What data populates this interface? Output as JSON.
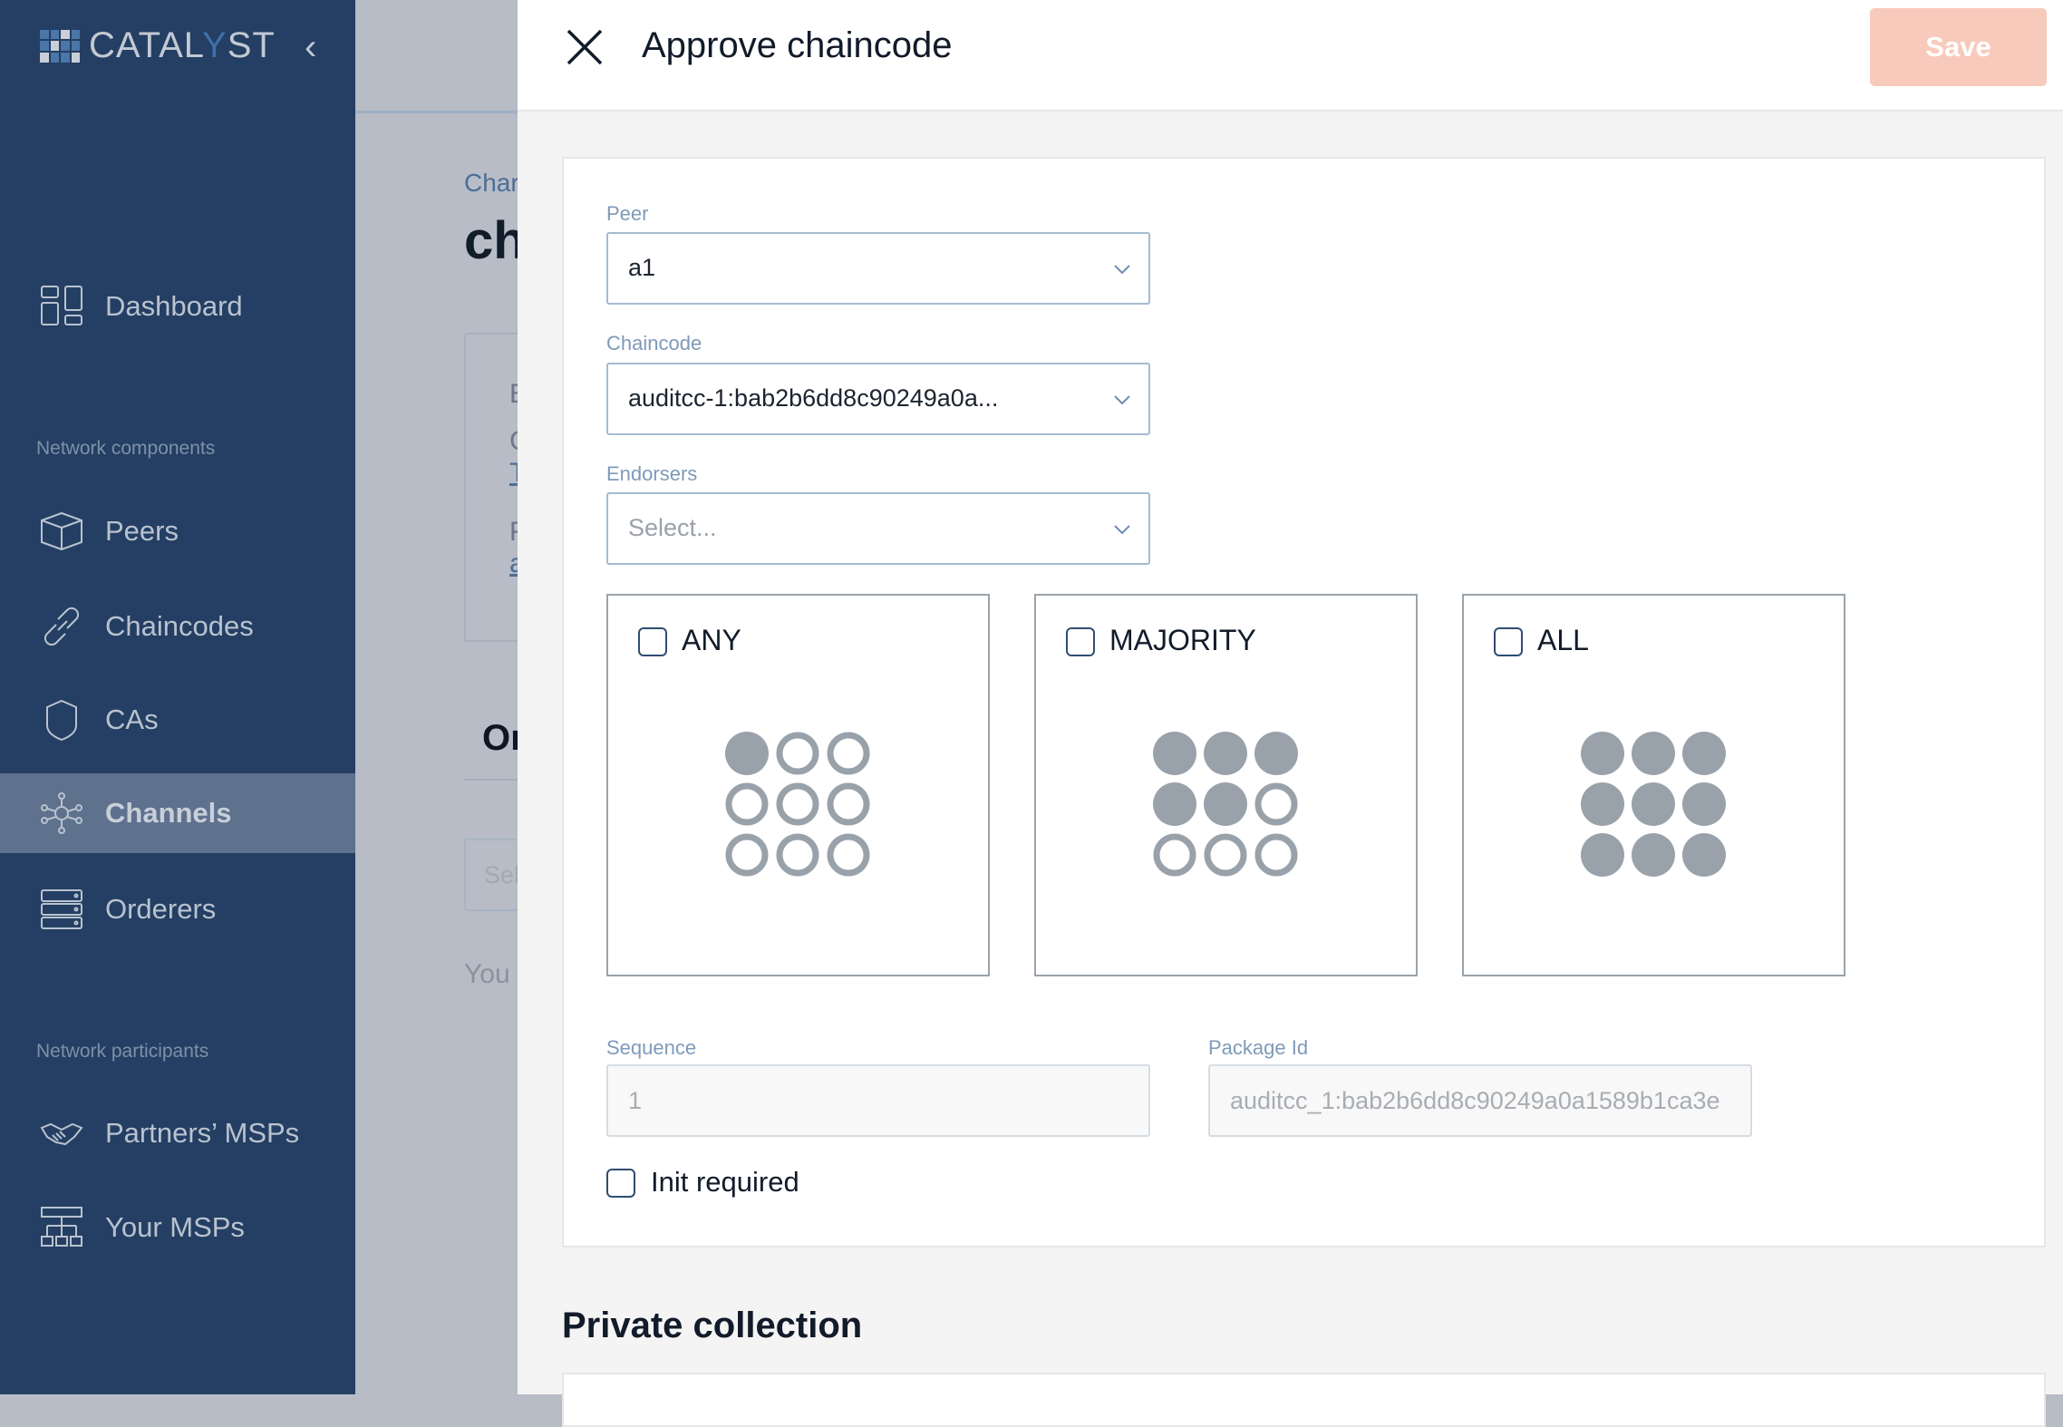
{
  "brand": {
    "logo_text_a": "CATAL",
    "logo_text_b": "Y",
    "logo_text_c": "ST"
  },
  "sidebar": {
    "collapse_label": "‹",
    "items": [
      {
        "label": "Dashboard",
        "icon": "dashboard-icon"
      },
      {
        "label": "Peers",
        "icon": "cube-icon"
      },
      {
        "label": "Chaincodes",
        "icon": "link-icon"
      },
      {
        "label": "CAs",
        "icon": "shield-icon"
      },
      {
        "label": "Channels",
        "icon": "network-icon",
        "active": true
      },
      {
        "label": "Orderers",
        "icon": "server-icon"
      },
      {
        "label": "Partners’ MSPs",
        "icon": "handshake-icon"
      },
      {
        "label": "Your MSPs",
        "icon": "org-chart-icon"
      }
    ],
    "sections": [
      "Network components",
      "Network participants"
    ]
  },
  "background_page": {
    "breadcrumb": "Char",
    "title": "ch",
    "card_lines": [
      "E",
      "C",
      "T",
      "F",
      "a"
    ],
    "tab": "Or",
    "select": "Sel",
    "note": "You"
  },
  "panel": {
    "title": "Approve chaincode",
    "save_label": "Save",
    "fields": {
      "peer": {
        "label": "Peer",
        "value": "a1"
      },
      "chaincode": {
        "label": "Chaincode",
        "value": "auditcc-1:bab2b6dd8c90249a0a..."
      },
      "endorsers": {
        "label": "Endorsers",
        "placeholder": "Select..."
      }
    },
    "policies": [
      {
        "label": "ANY",
        "checked": false,
        "filled": [
          1,
          0,
          0,
          0,
          0,
          0,
          0,
          0,
          0
        ]
      },
      {
        "label": "MAJORITY",
        "checked": false,
        "filled": [
          1,
          1,
          1,
          1,
          1,
          0,
          0,
          0,
          0
        ]
      },
      {
        "label": "ALL",
        "checked": false,
        "filled": [
          1,
          1,
          1,
          1,
          1,
          1,
          1,
          1,
          1
        ]
      }
    ],
    "sequence": {
      "label": "Sequence",
      "value": "1"
    },
    "package_id": {
      "label": "Package Id",
      "value": "auditcc_1:bab2b6dd8c90249a0a1589b1ca3e"
    },
    "init_required": {
      "label": "Init required",
      "checked": false
    },
    "private_collection_heading": "Private collection"
  },
  "colors": {
    "sidebar": "#243f63",
    "active": "#5e718d",
    "save": "#f7cabb",
    "dot": "#99a2aa",
    "label": "#7f9ab9"
  }
}
